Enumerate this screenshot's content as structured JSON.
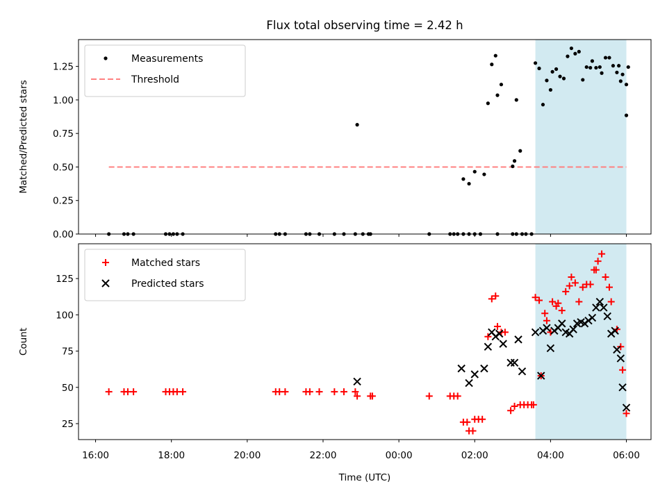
{
  "chart_data": {
    "type": "scatter",
    "title": "Flux total observing time = 2.42 h",
    "xlabel": "Time (UTC)",
    "x_unit": "hours since 16:00 UTC",
    "xlim": [
      -0.45,
      14.65
    ],
    "xticks": [
      {
        "value": 0,
        "label": "16:00"
      },
      {
        "value": 2,
        "label": "18:00"
      },
      {
        "value": 4,
        "label": "20:00"
      },
      {
        "value": 6,
        "label": "22:00"
      },
      {
        "value": 8,
        "label": "00:00"
      },
      {
        "value": 10,
        "label": "02:00"
      },
      {
        "value": 12,
        "label": "04:00"
      },
      {
        "value": 14,
        "label": "06:00"
      }
    ],
    "shaded_span": {
      "x0": 11.6,
      "x1": 14.0,
      "color": "#add8e6"
    },
    "panels": [
      {
        "id": "ratio",
        "ylabel": "Matched/Predicted stars",
        "ylim": [
          0,
          1.45
        ],
        "yticks": [
          "0.00",
          "0.25",
          "0.50",
          "0.75",
          "1.00",
          "1.25"
        ],
        "legend": "top-left",
        "threshold": {
          "name": "Threshold",
          "value": 0.5,
          "x0": 0.35,
          "x1": 14.0,
          "color": "#ff8080"
        },
        "series": [
          {
            "name": "Measurements",
            "marker": "dot",
            "color": "#000000",
            "points": [
              [
                0.35,
                0
              ],
              [
                0.75,
                0
              ],
              [
                0.85,
                0
              ],
              [
                1.0,
                0
              ],
              [
                1.85,
                0
              ],
              [
                1.95,
                0
              ],
              [
                2.05,
                0
              ],
              [
                2.15,
                0
              ],
              [
                2.3,
                0
              ],
              [
                4.75,
                0
              ],
              [
                4.85,
                0
              ],
              [
                5.0,
                0
              ],
              [
                5.55,
                0
              ],
              [
                5.65,
                0
              ],
              [
                5.9,
                0
              ],
              [
                6.3,
                0
              ],
              [
                6.55,
                0
              ],
              [
                6.85,
                0
              ],
              [
                7.05,
                0
              ],
              [
                7.2,
                0
              ],
              [
                7.25,
                0
              ],
              [
                8.8,
                0
              ],
              [
                9.35,
                0
              ],
              [
                9.45,
                0
              ],
              [
                9.55,
                0
              ],
              [
                9.7,
                0
              ],
              [
                9.85,
                0
              ],
              [
                10.0,
                0
              ],
              [
                10.15,
                0
              ],
              [
                10.6,
                0
              ],
              [
                11.0,
                0
              ],
              [
                11.1,
                0
              ],
              [
                11.25,
                0
              ],
              [
                11.35,
                0
              ],
              [
                11.5,
                0
              ],
              [
                6.9,
                0.815
              ],
              [
                9.7,
                0.41
              ],
              [
                9.85,
                0.375
              ],
              [
                10.0,
                0.465
              ],
              [
                10.25,
                0.445
              ],
              [
                10.35,
                0.975
              ],
              [
                10.45,
                1.265
              ],
              [
                10.55,
                1.33
              ],
              [
                10.6,
                1.035
              ],
              [
                10.7,
                1.115
              ],
              [
                11.0,
                0.505
              ],
              [
                11.05,
                0.545
              ],
              [
                11.1,
                1.0
              ],
              [
                11.2,
                0.62
              ],
              [
                11.6,
                1.275
              ],
              [
                11.7,
                1.235
              ],
              [
                11.8,
                0.965
              ],
              [
                11.9,
                1.145
              ],
              [
                12.0,
                1.075
              ],
              [
                12.05,
                1.21
              ],
              [
                12.15,
                1.23
              ],
              [
                12.25,
                1.175
              ],
              [
                12.35,
                1.16
              ],
              [
                12.45,
                1.325
              ],
              [
                12.55,
                1.385
              ],
              [
                12.65,
                1.345
              ],
              [
                12.75,
                1.36
              ],
              [
                12.85,
                1.15
              ],
              [
                12.95,
                1.245
              ],
              [
                13.05,
                1.24
              ],
              [
                13.1,
                1.29
              ],
              [
                13.2,
                1.24
              ],
              [
                13.3,
                1.245
              ],
              [
                13.35,
                1.2
              ],
              [
                13.45,
                1.315
              ],
              [
                13.55,
                1.315
              ],
              [
                13.65,
                1.255
              ],
              [
                13.75,
                1.205
              ],
              [
                13.8,
                1.255
              ],
              [
                13.85,
                1.14
              ],
              [
                13.9,
                1.19
              ],
              [
                14.0,
                1.115
              ],
              [
                14.05,
                1.245
              ],
              [
                14.0,
                0.885
              ]
            ]
          }
        ]
      },
      {
        "id": "counts",
        "ylabel": "Count",
        "ylim": [
          14,
          149
        ],
        "yticks": [
          "25",
          "50",
          "75",
          "100",
          "125"
        ],
        "legend": "top-left",
        "series": [
          {
            "name": "Matched stars",
            "marker": "plus",
            "color": "#ff0000",
            "points": [
              [
                0.35,
                47
              ],
              [
                0.75,
                47
              ],
              [
                0.85,
                47
              ],
              [
                1.0,
                47
              ],
              [
                1.85,
                47
              ],
              [
                1.95,
                47
              ],
              [
                2.05,
                47
              ],
              [
                2.15,
                47
              ],
              [
                2.3,
                47
              ],
              [
                4.75,
                47
              ],
              [
                4.85,
                47
              ],
              [
                5.0,
                47
              ],
              [
                5.55,
                47
              ],
              [
                5.65,
                47
              ],
              [
                5.9,
                47
              ],
              [
                6.3,
                47
              ],
              [
                6.55,
                47
              ],
              [
                6.85,
                47
              ],
              [
                6.9,
                44
              ],
              [
                7.25,
                44
              ],
              [
                7.3,
                44
              ],
              [
                8.8,
                44
              ],
              [
                9.35,
                44
              ],
              [
                9.45,
                44
              ],
              [
                9.55,
                44
              ],
              [
                9.7,
                26
              ],
              [
                9.8,
                26
              ],
              [
                9.85,
                20
              ],
              [
                9.95,
                20
              ],
              [
                10.0,
                28
              ],
              [
                10.1,
                28
              ],
              [
                10.2,
                28
              ],
              [
                10.35,
                85
              ],
              [
                10.45,
                111
              ],
              [
                10.55,
                113
              ],
              [
                10.6,
                92
              ],
              [
                10.7,
                88
              ],
              [
                10.8,
                88
              ],
              [
                10.95,
                34
              ],
              [
                11.05,
                37
              ],
              [
                11.2,
                38
              ],
              [
                11.3,
                38
              ],
              [
                11.4,
                38
              ],
              [
                11.5,
                38
              ],
              [
                11.55,
                38
              ],
              [
                11.6,
                112
              ],
              [
                11.7,
                110
              ],
              [
                11.75,
                58
              ],
              [
                11.85,
                101
              ],
              [
                11.9,
                96
              ],
              [
                12.0,
                88
              ],
              [
                12.05,
                109
              ],
              [
                12.15,
                106
              ],
              [
                12.2,
                108
              ],
              [
                12.3,
                103
              ],
              [
                12.4,
                116
              ],
              [
                12.5,
                120
              ],
              [
                12.55,
                126
              ],
              [
                12.65,
                122
              ],
              [
                12.75,
                109
              ],
              [
                12.85,
                119
              ],
              [
                12.95,
                121
              ],
              [
                13.05,
                121
              ],
              [
                13.15,
                131
              ],
              [
                13.2,
                131
              ],
              [
                13.25,
                137
              ],
              [
                13.35,
                142
              ],
              [
                13.45,
                126
              ],
              [
                13.55,
                119
              ],
              [
                13.6,
                109
              ],
              [
                13.75,
                90
              ],
              [
                13.85,
                78
              ],
              [
                13.9,
                62
              ],
              [
                14.0,
                32
              ]
            ]
          },
          {
            "name": "Predicted stars",
            "marker": "x",
            "color": "#000000",
            "points": [
              [
                6.9,
                54
              ],
              [
                9.65,
                63
              ],
              [
                9.85,
                53
              ],
              [
                10.0,
                59
              ],
              [
                10.25,
                63
              ],
              [
                10.35,
                78
              ],
              [
                10.45,
                88
              ],
              [
                10.55,
                85
              ],
              [
                10.65,
                87
              ],
              [
                10.75,
                80
              ],
              [
                10.95,
                67
              ],
              [
                11.05,
                67
              ],
              [
                11.15,
                83
              ],
              [
                11.25,
                61
              ],
              [
                11.6,
                88
              ],
              [
                11.75,
                58
              ],
              [
                11.8,
                89
              ],
              [
                11.9,
                91
              ],
              [
                12.0,
                77
              ],
              [
                12.1,
                89
              ],
              [
                12.2,
                91
              ],
              [
                12.3,
                94
              ],
              [
                12.4,
                88
              ],
              [
                12.5,
                87
              ],
              [
                12.6,
                90
              ],
              [
                12.7,
                94
              ],
              [
                12.8,
                95
              ],
              [
                12.9,
                94
              ],
              [
                13.0,
                96
              ],
              [
                13.1,
                98
              ],
              [
                13.2,
                105
              ],
              [
                13.3,
                109
              ],
              [
                13.4,
                105
              ],
              [
                13.5,
                99
              ],
              [
                13.6,
                87
              ],
              [
                13.7,
                89
              ],
              [
                13.75,
                76
              ],
              [
                13.85,
                70
              ],
              [
                13.9,
                50
              ],
              [
                14.0,
                36
              ]
            ]
          }
        ]
      }
    ]
  }
}
